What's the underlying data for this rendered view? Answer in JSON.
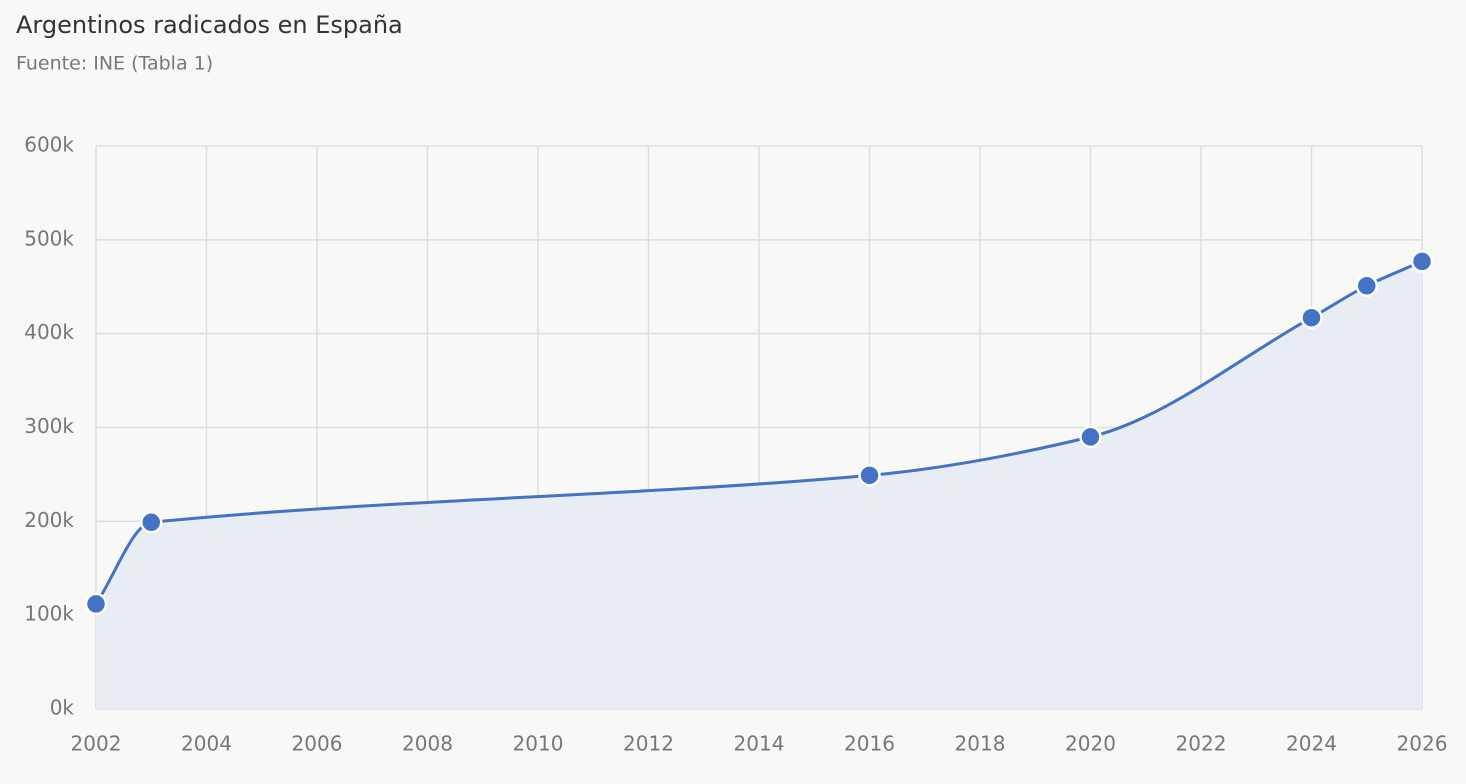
{
  "chart_data": {
    "type": "area",
    "title": "Argentinos radicados en España",
    "subtitle": "Fuente: INE (Tabla 1)",
    "x": [
      2002,
      2003,
      2016,
      2020,
      2024,
      2025,
      2026
    ],
    "values": [
      112000,
      199000,
      249000,
      290000,
      417000,
      451000,
      477000
    ],
    "color": "#4472c4",
    "fill_color": "#e8ecf4",
    "xlim": [
      2002,
      2026
    ],
    "xticks": [
      2002,
      2004,
      2006,
      2008,
      2010,
      2012,
      2014,
      2016,
      2018,
      2020,
      2022,
      2024,
      2026
    ],
    "ylim": [
      0,
      600000
    ],
    "yticks": [
      {
        "value": 0,
        "label": "0k"
      },
      {
        "value": 100000,
        "label": "100k"
      },
      {
        "value": 200000,
        "label": "200k"
      },
      {
        "value": 300000,
        "label": "300k"
      },
      {
        "value": 400000,
        "label": "400k"
      },
      {
        "value": 500000,
        "label": "500k"
      },
      {
        "value": 600000,
        "label": "600k"
      }
    ],
    "grid": true
  }
}
